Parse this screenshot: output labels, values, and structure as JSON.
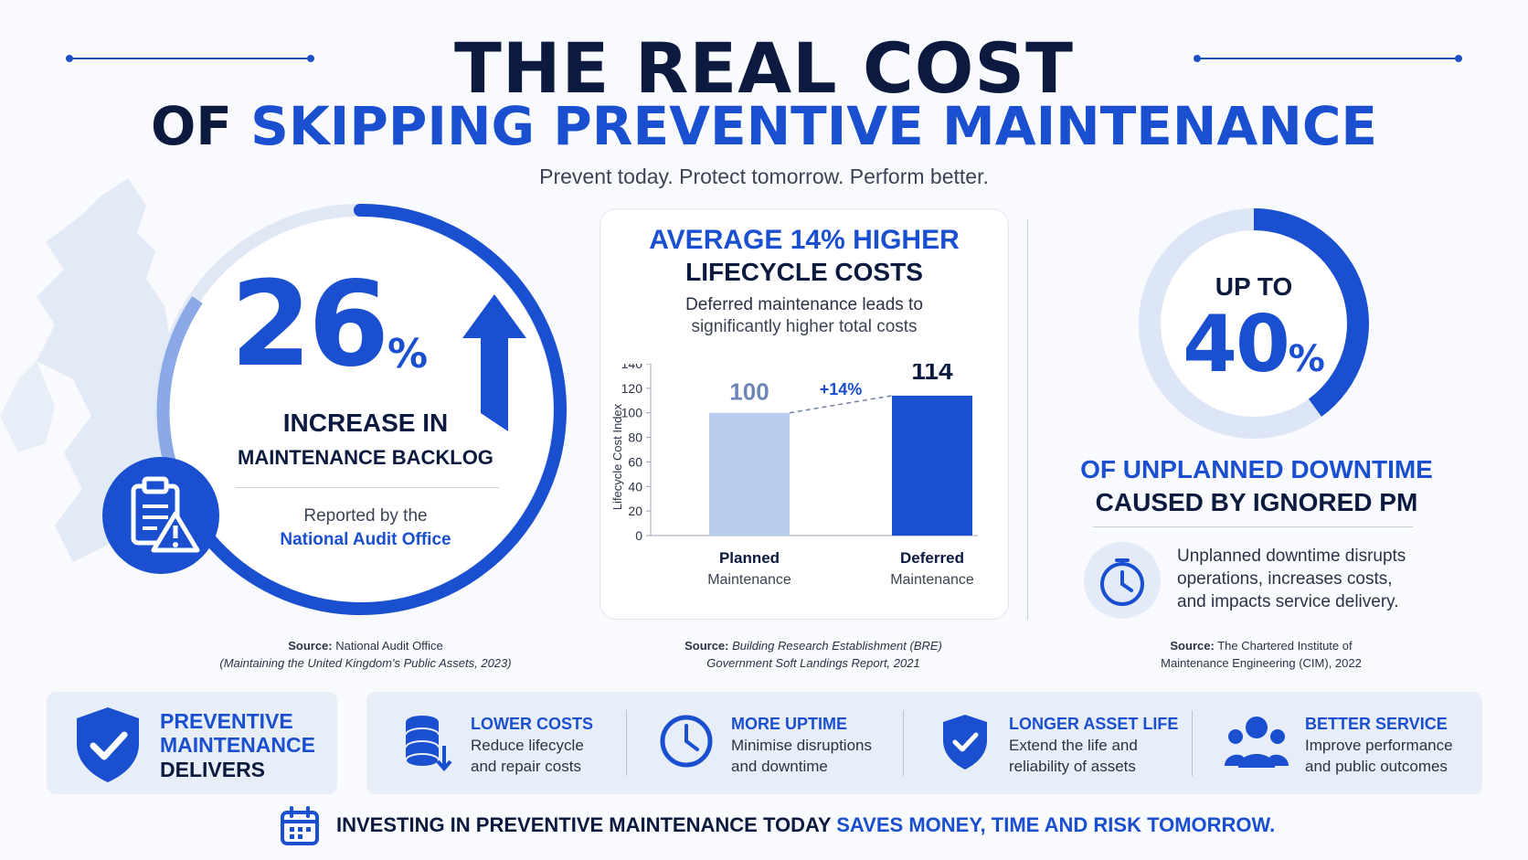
{
  "header": {
    "title_line1": "THE REAL COST",
    "title_line2_prefix": "OF ",
    "title_line2_highlight": "SKIPPING PREVENTIVE MAINTENANCE",
    "tagline": "Prevent today. Protect tomorrow. Perform better."
  },
  "left_panel": {
    "big_number": "26",
    "percent_sign": "%",
    "headline": "INCREASE IN",
    "subheadline": "MAINTENANCE BACKLOG",
    "reported_by": "Reported by the",
    "reporter": "National Audit Office",
    "source_label": "Source:",
    "source_text": "National Audit Office",
    "source_detail": "(Maintaining the United Kingdom's Public Assets, 2023)",
    "icon": "clipboard-warning-icon"
  },
  "middle_panel": {
    "headline_blue": "AVERAGE 14% HIGHER",
    "headline_dark": "LIFECYCLE COSTS",
    "desc_line1": "Deferred maintenance leads to",
    "desc_line2": "significantly higher total costs",
    "source_label": "Source:",
    "source_text": "Building Research Establishment (BRE)",
    "source_detail": "Government Soft Landings Report, 2021"
  },
  "chart_data": {
    "type": "bar",
    "categories": [
      "Planned Maintenance",
      "Deferred Maintenance"
    ],
    "category_line1": [
      "Planned",
      "Deferred"
    ],
    "category_line2": [
      "Maintenance",
      "Maintenance"
    ],
    "values": [
      100,
      114
    ],
    "value_labels": [
      "100",
      "114"
    ],
    "annotation": "+14%",
    "ylabel": "Lifecycle Cost Index",
    "ylim": [
      0,
      140
    ],
    "yticks": [
      0,
      20,
      40,
      60,
      80,
      100,
      120,
      140
    ],
    "colors": [
      "#b9cdee",
      "#1a4fd0"
    ]
  },
  "right_panel": {
    "upto": "UP TO",
    "big_number": "40",
    "percent_sign": "%",
    "ring_fill_fraction": 0.4,
    "headline_blue": "OF UNPLANNED DOWNTIME",
    "headline_dark": "CAUSED BY IGNORED PM",
    "desc_line1": "Unplanned downtime disrupts",
    "desc_line2": "operations, increases costs,",
    "desc_line3": "and impacts service delivery.",
    "icon": "stopwatch-icon",
    "source_label": "Source:",
    "source_text": "The Chartered Institute of",
    "source_detail": "Maintenance Engineering (CIM), 2022"
  },
  "delivers": {
    "line1": "PREVENTIVE",
    "line2": "MAINTENANCE",
    "line3": "DELIVERS",
    "icon": "shield-check-icon"
  },
  "benefits": [
    {
      "title": "LOWER COSTS",
      "line1": "Reduce lifecycle",
      "line2": "and repair costs",
      "icon": "coins-down-icon"
    },
    {
      "title": "MORE UPTIME",
      "line1": "Minimise disruptions",
      "line2": "and downtime",
      "icon": "clock-icon"
    },
    {
      "title": "LONGER ASSET LIFE",
      "line1": "Extend the life and",
      "line2": "reliability of assets",
      "icon": "shield-check-icon"
    },
    {
      "title": "BETTER SERVICE",
      "line1": "Improve performance",
      "line2": "and public outcomes",
      "icon": "people-icon"
    }
  ],
  "footer": {
    "text_dark": "INVESTING IN PREVENTIVE MAINTENANCE TODAY ",
    "text_blue": "SAVES MONEY, TIME AND RISK TOMORROW.",
    "icon": "calendar-icon"
  },
  "colors": {
    "accent": "#1a4fd0",
    "navy": "#0b1a3e",
    "light_blue": "#b9cdee",
    "panel_bg": "#e8eef8"
  }
}
